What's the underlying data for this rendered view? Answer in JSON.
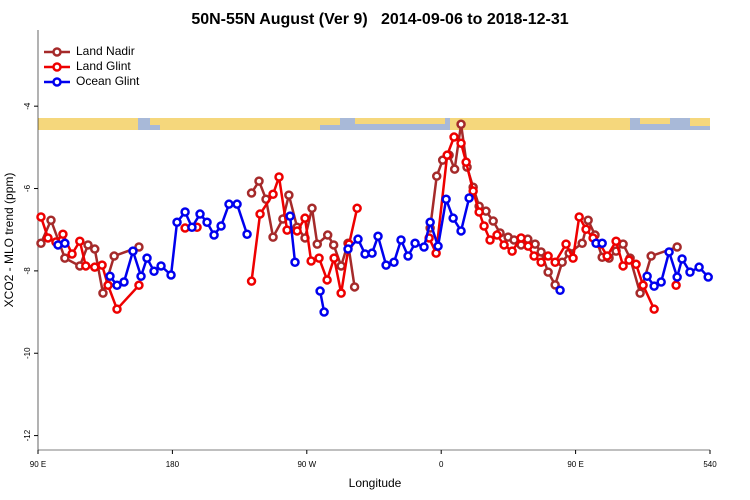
{
  "chart_data": {
    "type": "line",
    "title": "50N-55N August (Ver 9)   2014-09-06 to 2018-12-31",
    "x_label": "Longitude",
    "y_label": "XCO2 - MLO trend (ppm)",
    "xlim": [
      90,
      540
    ],
    "xticks": [
      {
        "value": 90,
        "label": "90 E"
      },
      180,
      {
        "value": 270,
        "label": "90 W"
      },
      {
        "value": 360,
        "label": "0"
      },
      {
        "value": 450,
        "label": "90 E"
      },
      540
    ],
    "ylim": [
      -12.35,
      -2.15
    ],
    "yticks": [
      -4,
      -6,
      -8,
      -10,
      -12
    ],
    "legend": "top-left",
    "series": [
      {
        "name": "Land Nadir",
        "color": "#a52a2a",
        "x": [
          92,
          98.7,
          108,
          118,
          123.5,
          128,
          133.5,
          141,
          157.6,
          null,
          233,
          238,
          242.7,
          247.4,
          254,
          258,
          263.5,
          268.8,
          273.5,
          277,
          284,
          288,
          293,
          297.6,
          302,
          null,
          352.6,
          357,
          361,
          365.3,
          369,
          373.3,
          377.3,
          381.4,
          385.4,
          390,
          394.8,
          399.4,
          404.8,
          408.8,
          413.5,
          418,
          422.9,
          426.9,
          431.6,
          436.3,
          441,
          445.7,
          454.4,
          458.4,
          463,
          467.8,
          472.4,
          477.1,
          481.8,
          486.5,
          493.2,
          500.6,
          518
        ],
        "values": [
          -7.33,
          -6.77,
          -7.69,
          -7.88,
          -7.37,
          -7.47,
          -8.54,
          -7.64,
          -7.42,
          null,
          -6.11,
          -5.82,
          -6.26,
          -7.18,
          -6.74,
          -6.16,
          -6.94,
          -7.2,
          -6.48,
          -7.35,
          -7.13,
          -7.37,
          -7.88,
          -7.33,
          -8.39,
          null,
          -6.96,
          -5.7,
          -5.31,
          -5.19,
          -5.53,
          -4.44,
          -5.48,
          -5.97,
          -6.43,
          -6.55,
          -6.79,
          -7.08,
          -7.18,
          -7.25,
          -7.37,
          -7.23,
          -7.35,
          -7.54,
          -8.03,
          -8.34,
          -7.79,
          -7.57,
          -7.33,
          -6.77,
          -7.13,
          -7.67,
          -7.69,
          -7.52,
          -7.35,
          -7.69,
          -8.54,
          -7.64,
          -7.42
        ]
      },
      {
        "name": "Land Glint",
        "color": "#ee0000",
        "x": [
          92,
          96.7,
          102,
          106.7,
          112.8,
          118,
          122,
          128,
          132.9,
          136.9,
          142.9,
          157.6,
          null,
          188.5,
          196.5,
          null,
          233,
          238.7,
          247.4,
          251.4,
          256.8,
          263.5,
          268.8,
          272.9,
          278.2,
          283.6,
          288.3,
          293,
          298.3,
          303.7,
          null,
          351.9,
          356.6,
          364,
          368.6,
          373.3,
          376.7,
          381.4,
          385.4,
          388.7,
          392.7,
          397.4,
          402.1,
          407.5,
          413.5,
          418.2,
          422.2,
          426.9,
          431.6,
          436.3,
          443.6,
          448.3,
          452.4,
          457,
          461.7,
          466.4,
          471.1,
          477.1,
          481.8,
          485.8,
          490.5,
          495.2,
          502.6,
          null,
          517.3
        ],
        "values": [
          -6.69,
          -7.2,
          -7.3,
          -7.11,
          -7.59,
          -7.28,
          -7.88,
          -7.91,
          -7.86,
          -8.35,
          -8.93,
          -8.35,
          null,
          -6.96,
          -6.94,
          null,
          -8.25,
          -6.62,
          -6.14,
          -5.72,
          -7.01,
          -7.03,
          -6.72,
          -7.76,
          -7.69,
          -8.22,
          -7.69,
          -8.54,
          -7.35,
          -6.48,
          null,
          -7.2,
          -7.57,
          -5.19,
          -4.75,
          -4.9,
          -5.36,
          -6.06,
          -6.57,
          -6.91,
          -7.25,
          -7.13,
          -7.37,
          -7.52,
          -7.2,
          -7.4,
          -7.64,
          -7.79,
          -7.64,
          -7.79,
          -7.35,
          -7.69,
          -6.69,
          -6.99,
          -7.2,
          -7.35,
          -7.64,
          -7.28,
          -7.88,
          -7.74,
          -7.84,
          -8.35,
          -8.93,
          null,
          -8.35
        ]
      },
      {
        "name": "Ocean Glint",
        "color": "#0000ee",
        "x": [
          103.4,
          108,
          null,
          138.2,
          142.9,
          147.6,
          153.6,
          159,
          163,
          167.7,
          172.4,
          179.1,
          183.1,
          188.5,
          193.1,
          198.5,
          203.2,
          207.9,
          212.6,
          217.9,
          223.3,
          230,
          null,
          258.8,
          262.1,
          null,
          278.9,
          281.6,
          null,
          297.6,
          304.3,
          309,
          313.7,
          317.7,
          323.1,
          328.4,
          333.1,
          337.8,
          342.5,
          348.5,
          352.6,
          357.9,
          363.3,
          368,
          373.3,
          378.7,
          null,
          439.6,
          null,
          463.7,
          467.8,
          null,
          497.9,
          502.6,
          507.3,
          512.6,
          518,
          521.3,
          526.6,
          532.7,
          538.8
        ],
        "values": [
          -7.37,
          -7.33,
          null,
          -8.13,
          -8.35,
          -8.27,
          -7.52,
          -8.13,
          -7.69,
          -8.01,
          -7.88,
          -8.1,
          -6.82,
          -6.57,
          -6.94,
          -6.62,
          -6.82,
          -7.13,
          -6.91,
          -6.38,
          -6.38,
          -7.11,
          null,
          -6.67,
          -7.79,
          null,
          -8.49,
          -9.0,
          null,
          -7.47,
          -7.23,
          -7.59,
          -7.57,
          -7.16,
          -7.86,
          -7.79,
          -7.25,
          -7.64,
          -7.33,
          -7.42,
          -6.82,
          -7.4,
          -6.26,
          -6.72,
          -7.03,
          -6.23,
          null,
          -8.47,
          null,
          -7.33,
          -7.33,
          null,
          -8.13,
          -8.37,
          -8.27,
          -7.54,
          -8.15,
          -7.71,
          -8.03,
          -7.91,
          -8.15
        ]
      }
    ]
  }
}
